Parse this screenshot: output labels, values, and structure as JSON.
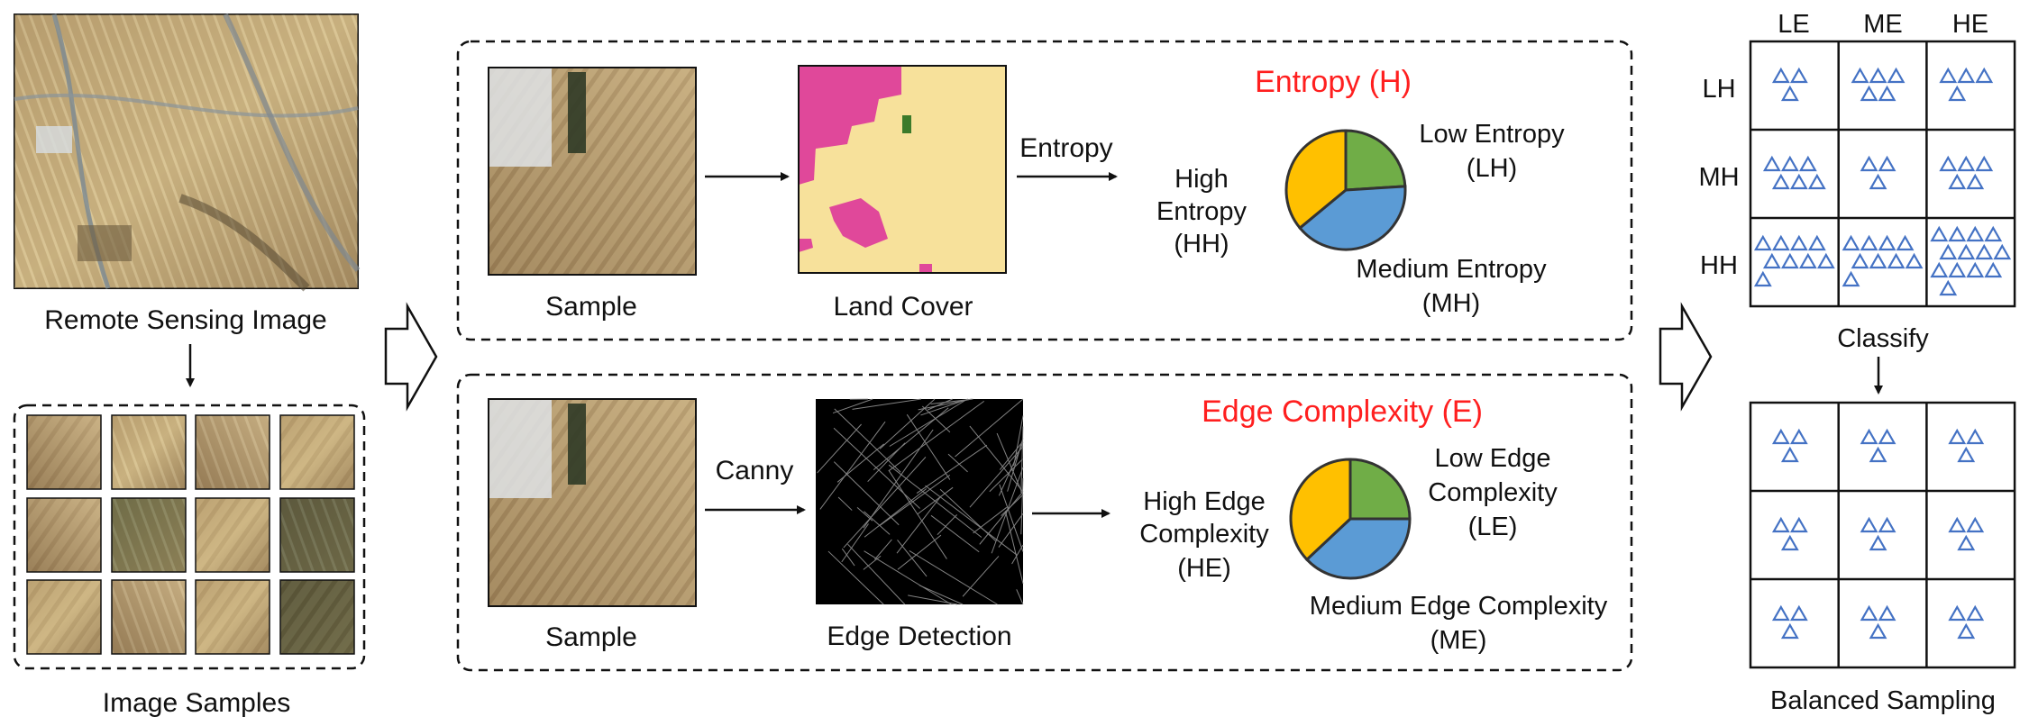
{
  "colors": {
    "red_title": "#ff1f1f",
    "triangle_blue": "#4472c4",
    "pie_green": "#70ad47",
    "pie_blue": "#5b9bd5",
    "pie_yellow": "#ffc000",
    "landcover_bg": "#f7e19b",
    "landcover_pink": "#e0489a",
    "landcover_green": "#3c7a2a"
  },
  "left": {
    "remote_sensing_label": "Remote Sensing Image",
    "image_samples_label": "Image Samples"
  },
  "entropy_panel": {
    "title": "Entropy (H)",
    "sample_label": "Sample",
    "land_cover_label": "Land Cover",
    "arrow_label": "Entropy",
    "high_label": [
      "High",
      "Entropy",
      "(HH)"
    ],
    "low_label": [
      "Low Entropy",
      "(LH)"
    ],
    "medium_label": [
      "Medium Entropy",
      "(MH)"
    ],
    "icons": [
      "sample-image",
      "land-cover-map",
      "entropy-pie"
    ]
  },
  "edge_panel": {
    "title": "Edge Complexity (E)",
    "sample_label": "Sample",
    "edge_label": "Edge Detection",
    "arrow_label": "Canny",
    "high_label": [
      "High Edge",
      "Complexity",
      "(HE)"
    ],
    "low_label": [
      "Low Edge",
      "Complexity",
      "(LE)"
    ],
    "medium_label": [
      "Medium Edge Complexity",
      "(ME)"
    ],
    "icons": [
      "sample-image",
      "edge-map",
      "edge-pie"
    ]
  },
  "classify_grid": {
    "col_headers": [
      "LE",
      "ME",
      "HE"
    ],
    "row_headers": [
      "LH",
      "MH",
      "HH"
    ],
    "triangle_counts": [
      [
        3,
        5,
        4
      ],
      [
        6,
        3,
        5
      ],
      [
        9,
        9,
        13
      ]
    ],
    "label": "Classify"
  },
  "balanced_grid": {
    "triangle_counts": [
      [
        3,
        3,
        3
      ],
      [
        3,
        3,
        3
      ],
      [
        3,
        3,
        3
      ]
    ],
    "label": "Balanced Sampling"
  },
  "pies": {
    "entropy": [
      {
        "name": "Low Entropy (LH)",
        "value": 0.24,
        "color": "#70ad47"
      },
      {
        "name": "Medium Entropy (MH)",
        "value": 0.4,
        "color": "#5b9bd5"
      },
      {
        "name": "High Entropy (HH)",
        "value": 0.36,
        "color": "#ffc000"
      }
    ],
    "edge": [
      {
        "name": "Low Edge Complexity (LE)",
        "value": 0.25,
        "color": "#70ad47"
      },
      {
        "name": "Medium Edge Complexity (ME)",
        "value": 0.38,
        "color": "#5b9bd5"
      },
      {
        "name": "High Edge Complexity (HE)",
        "value": 0.37,
        "color": "#ffc000"
      }
    ]
  }
}
